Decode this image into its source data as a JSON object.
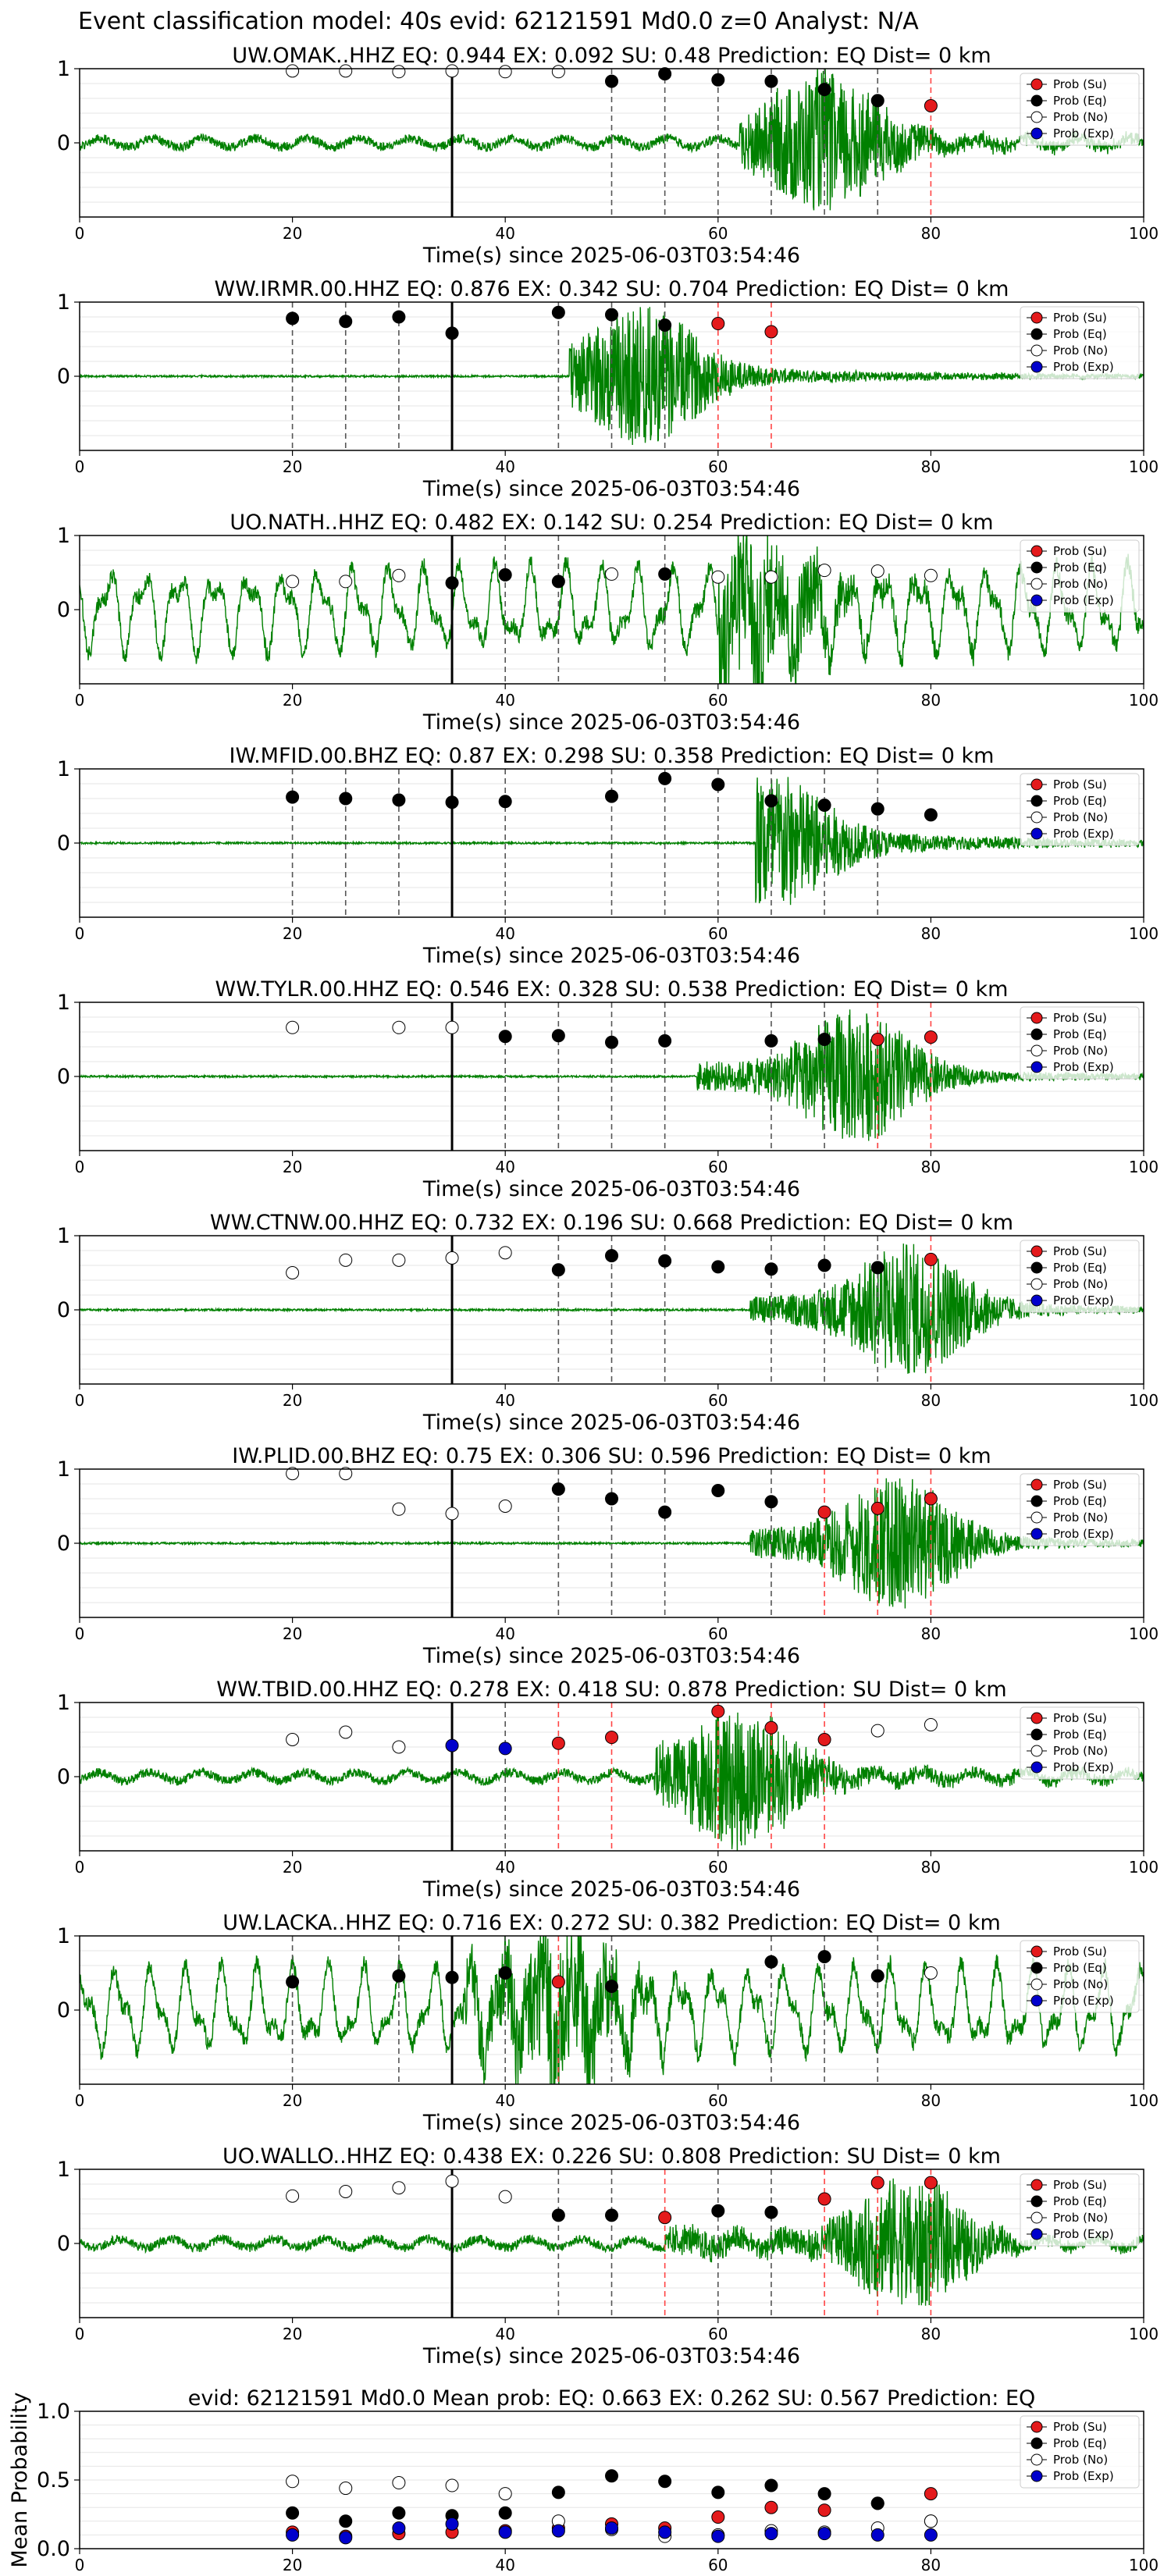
{
  "suptitle": "Event classification model: 40s evid: 62121591 Md0.0 z=0 Analyst: N/A",
  "legend_labels": [
    "Prob (Su)",
    "Prob (Eq)",
    "Prob (No)",
    "Prob (Exp)"
  ],
  "colors": {
    "waveform": "#008000",
    "su": "#e41a1c",
    "eq": "#000000",
    "no": "#ffffff",
    "exp": "#0000cc",
    "eq_line": "#555555",
    "su_line": "#ff4444",
    "origin_line": "#000000"
  },
  "chart_data": [
    {
      "type": "line",
      "title": "UW.OMAK..HHZ   EQ: 0.944   EX: 0.092   SU: 0.48   Prediction: EQ    Dist= 0 km",
      "xlabel": "Time(s) since 2025-06-03T03:54:46",
      "xlim": [
        0,
        100
      ],
      "ylim": [
        -1,
        1
      ],
      "yticks": [
        "1",
        "0"
      ],
      "xticks": [
        "0",
        "20",
        "40",
        "60",
        "80",
        "100"
      ],
      "origin_time": 35,
      "eq_lines": [
        50,
        55,
        60,
        65,
        70,
        75
      ],
      "su_lines": [
        80
      ],
      "points": [
        [
          20,
          0.97,
          "no"
        ],
        [
          25,
          0.97,
          "no"
        ],
        [
          30,
          0.96,
          "no"
        ],
        [
          35,
          0.97,
          "no"
        ],
        [
          40,
          0.96,
          "no"
        ],
        [
          45,
          0.96,
          "no"
        ],
        [
          50,
          0.83,
          "eq"
        ],
        [
          55,
          0.93,
          "eq"
        ],
        [
          60,
          0.85,
          "eq"
        ],
        [
          65,
          0.83,
          "eq"
        ],
        [
          70,
          0.72,
          "eq"
        ],
        [
          75,
          0.57,
          "eq"
        ],
        [
          80,
          0.5,
          "su"
        ]
      ],
      "waveform_style": "noisy_mid_then_burst",
      "burst_start": 62,
      "burst_peak": 70
    },
    {
      "type": "line",
      "title": "WW.IRMR.00.HHZ   EQ: 0.876   EX: 0.342   SU: 0.704   Prediction: EQ    Dist= 0 km",
      "xlabel": "Time(s) since 2025-06-03T03:54:46",
      "xlim": [
        0,
        100
      ],
      "ylim": [
        -1,
        1
      ],
      "yticks": [
        "1",
        "0"
      ],
      "xticks": [
        "0",
        "20",
        "40",
        "60",
        "80",
        "100"
      ],
      "origin_time": 35,
      "eq_lines": [
        20,
        25,
        30,
        45,
        50,
        55
      ],
      "su_lines": [
        60,
        65
      ],
      "points": [
        [
          20,
          0.78,
          "eq"
        ],
        [
          25,
          0.74,
          "eq"
        ],
        [
          30,
          0.8,
          "eq"
        ],
        [
          35,
          0.58,
          "eq"
        ],
        [
          45,
          0.86,
          "eq"
        ],
        [
          50,
          0.83,
          "eq"
        ],
        [
          55,
          0.69,
          "eq"
        ],
        [
          60,
          0.71,
          "su"
        ],
        [
          65,
          0.6,
          "su"
        ]
      ],
      "waveform_style": "quiet_then_burst",
      "burst_start": 46,
      "burst_peak": 53
    },
    {
      "type": "line",
      "title": "UO.NATH..HHZ   EQ: 0.482   EX: 0.142   SU: 0.254   Prediction: EQ    Dist= 0 km",
      "xlabel": "Time(s) since 2025-06-03T03:54:46",
      "xlim": [
        0,
        100
      ],
      "ylim": [
        -1,
        1
      ],
      "yticks": [
        "1",
        "0"
      ],
      "xticks": [
        "0",
        "20",
        "40",
        "60",
        "80",
        "100"
      ],
      "origin_time": 35,
      "eq_lines": [
        35,
        40,
        45,
        55
      ],
      "su_lines": [],
      "points": [
        [
          20,
          0.38,
          "no"
        ],
        [
          25,
          0.38,
          "no"
        ],
        [
          30,
          0.46,
          "no"
        ],
        [
          35,
          0.36,
          "eq"
        ],
        [
          40,
          0.47,
          "eq"
        ],
        [
          45,
          0.38,
          "eq"
        ],
        [
          50,
          0.48,
          "no"
        ],
        [
          55,
          0.48,
          "eq"
        ],
        [
          60,
          0.44,
          "no"
        ],
        [
          65,
          0.44,
          "no"
        ],
        [
          70,
          0.53,
          "no"
        ],
        [
          75,
          0.52,
          "no"
        ],
        [
          80,
          0.46,
          "no"
        ]
      ],
      "waveform_style": "large_oscillation",
      "burst_start": 60,
      "burst_peak": 63
    },
    {
      "type": "line",
      "title": "IW.MFID.00.BHZ   EQ: 0.87   EX: 0.298   SU: 0.358   Prediction: EQ    Dist= 0 km",
      "xlabel": "Time(s) since 2025-06-03T03:54:46",
      "xlim": [
        0,
        100
      ],
      "ylim": [
        -1,
        1
      ],
      "yticks": [
        "1",
        "0"
      ],
      "xticks": [
        "0",
        "20",
        "40",
        "60",
        "80",
        "100"
      ],
      "origin_time": 35,
      "eq_lines": [
        20,
        25,
        30,
        40,
        50,
        55,
        60,
        65,
        70,
        75
      ],
      "su_lines": [],
      "points": [
        [
          20,
          0.62,
          "eq"
        ],
        [
          25,
          0.6,
          "eq"
        ],
        [
          30,
          0.58,
          "eq"
        ],
        [
          35,
          0.55,
          "eq"
        ],
        [
          40,
          0.56,
          "eq"
        ],
        [
          50,
          0.63,
          "eq"
        ],
        [
          55,
          0.87,
          "eq"
        ],
        [
          60,
          0.79,
          "eq"
        ],
        [
          65,
          0.57,
          "eq"
        ],
        [
          70,
          0.51,
          "eq"
        ],
        [
          75,
          0.46,
          "eq"
        ],
        [
          80,
          0.38,
          "eq"
        ]
      ],
      "waveform_style": "quiet_then_burst",
      "burst_start": 63.5,
      "burst_peak": 65
    },
    {
      "type": "line",
      "title": "WW.TYLR.00.HHZ   EQ: 0.546   EX: 0.328   SU: 0.538   Prediction: EQ    Dist= 0 km",
      "xlabel": "Time(s) since 2025-06-03T03:54:46",
      "xlim": [
        0,
        100
      ],
      "ylim": [
        -1,
        1
      ],
      "yticks": [
        "1",
        "0"
      ],
      "xticks": [
        "0",
        "20",
        "40",
        "60",
        "80",
        "100"
      ],
      "origin_time": 35,
      "eq_lines": [
        40,
        45,
        50,
        55,
        65,
        70,
        75
      ],
      "su_lines": [
        75,
        80
      ],
      "points": [
        [
          20,
          0.66,
          "no"
        ],
        [
          30,
          0.66,
          "no"
        ],
        [
          35,
          0.66,
          "no"
        ],
        [
          40,
          0.54,
          "eq"
        ],
        [
          45,
          0.55,
          "eq"
        ],
        [
          50,
          0.46,
          "eq"
        ],
        [
          55,
          0.48,
          "eq"
        ],
        [
          65,
          0.48,
          "eq"
        ],
        [
          70,
          0.5,
          "eq"
        ],
        [
          75,
          0.5,
          "su"
        ],
        [
          80,
          0.53,
          "su"
        ]
      ],
      "waveform_style": "quiet_then_burst",
      "burst_start": 58,
      "burst_peak": 73
    },
    {
      "type": "line",
      "title": "WW.CTNW.00.HHZ   EQ: 0.732   EX: 0.196   SU: 0.668   Prediction: EQ    Dist= 0 km",
      "xlabel": "Time(s) since 2025-06-03T03:54:46",
      "xlim": [
        0,
        100
      ],
      "ylim": [
        -1,
        1
      ],
      "yticks": [
        "1",
        "0"
      ],
      "xticks": [
        "0",
        "20",
        "40",
        "60",
        "80",
        "100"
      ],
      "origin_time": 35,
      "eq_lines": [
        45,
        50,
        55,
        65,
        70,
        75
      ],
      "su_lines": [
        80
      ],
      "points": [
        [
          20,
          0.5,
          "no"
        ],
        [
          25,
          0.67,
          "no"
        ],
        [
          30,
          0.67,
          "no"
        ],
        [
          35,
          0.7,
          "no"
        ],
        [
          40,
          0.77,
          "no"
        ],
        [
          45,
          0.54,
          "eq"
        ],
        [
          50,
          0.73,
          "eq"
        ],
        [
          55,
          0.66,
          "eq"
        ],
        [
          60,
          0.58,
          "eq"
        ],
        [
          65,
          0.55,
          "eq"
        ],
        [
          70,
          0.6,
          "eq"
        ],
        [
          75,
          0.57,
          "eq"
        ],
        [
          80,
          0.68,
          "su"
        ]
      ],
      "waveform_style": "quiet_then_burst",
      "burst_start": 63,
      "burst_peak": 78
    },
    {
      "type": "line",
      "title": "IW.PLID.00.BHZ   EQ: 0.75  EX: 0.306  SU: 0.596   Prediction: EQ    Dist= 0 km",
      "xlabel": "Time(s) since 2025-06-03T03:54:46",
      "xlim": [
        0,
        100
      ],
      "ylim": [
        -1,
        1
      ],
      "yticks": [
        "1",
        "0"
      ],
      "xticks": [
        "0",
        "20",
        "40",
        "60",
        "80",
        "100"
      ],
      "origin_time": 35,
      "eq_lines": [
        45,
        50,
        55,
        65
      ],
      "su_lines": [
        70,
        75,
        80
      ],
      "points": [
        [
          20,
          0.94,
          "no"
        ],
        [
          25,
          0.94,
          "no"
        ],
        [
          30,
          0.46,
          "no"
        ],
        [
          35,
          0.4,
          "no"
        ],
        [
          40,
          0.5,
          "no"
        ],
        [
          45,
          0.73,
          "eq"
        ],
        [
          50,
          0.6,
          "eq"
        ],
        [
          55,
          0.42,
          "eq"
        ],
        [
          60,
          0.71,
          "eq"
        ],
        [
          65,
          0.56,
          "eq"
        ],
        [
          70,
          0.42,
          "su"
        ],
        [
          75,
          0.47,
          "su"
        ],
        [
          80,
          0.6,
          "su"
        ]
      ],
      "waveform_style": "quiet_then_burst",
      "burst_start": 63,
      "burst_peak": 77
    },
    {
      "type": "line",
      "title": "WW.TBID.00.HHZ   EQ: 0.278   EX: 0.418   SU: 0.878   Prediction: SU    Dist= 0 km",
      "xlabel": "Time(s) since 2025-06-03T03:54:46",
      "xlim": [
        0,
        100
      ],
      "ylim": [
        -1,
        1
      ],
      "yticks": [
        "1",
        "0"
      ],
      "xticks": [
        "0",
        "20",
        "40",
        "60",
        "80",
        "100"
      ],
      "origin_time": 35,
      "eq_lines": [
        40
      ],
      "su_lines": [
        45,
        50,
        60,
        65,
        70
      ],
      "points": [
        [
          20,
          0.5,
          "no"
        ],
        [
          25,
          0.6,
          "no"
        ],
        [
          30,
          0.4,
          "no"
        ],
        [
          35,
          0.42,
          "exp"
        ],
        [
          40,
          0.38,
          "exp"
        ],
        [
          45,
          0.45,
          "su"
        ],
        [
          50,
          0.53,
          "su"
        ],
        [
          60,
          0.88,
          "su"
        ],
        [
          65,
          0.66,
          "su"
        ],
        [
          70,
          0.5,
          "su"
        ],
        [
          75,
          0.62,
          "no"
        ],
        [
          80,
          0.7,
          "no"
        ]
      ],
      "waveform_style": "noisy_mid_then_burst",
      "burst_start": 54,
      "burst_peak": 62
    },
    {
      "type": "line",
      "title": "UW.LACKA..HHZ   EQ: 0.716   EX: 0.272   SU: 0.382   Prediction: EQ    Dist= 0 km",
      "xlabel": "Time(s) since 2025-06-03T03:54:46",
      "xlim": [
        0,
        100
      ],
      "ylim": [
        -1,
        1
      ],
      "yticks": [
        "1",
        "0"
      ],
      "xticks": [
        "0",
        "20",
        "40",
        "60",
        "80",
        "100"
      ],
      "origin_time": 35,
      "eq_lines": [
        20,
        30,
        40,
        50,
        65,
        70,
        75
      ],
      "su_lines": [
        45
      ],
      "points": [
        [
          20,
          0.38,
          "eq"
        ],
        [
          30,
          0.46,
          "eq"
        ],
        [
          35,
          0.44,
          "eq"
        ],
        [
          40,
          0.5,
          "eq"
        ],
        [
          45,
          0.38,
          "su"
        ],
        [
          50,
          0.32,
          "eq"
        ],
        [
          65,
          0.65,
          "eq"
        ],
        [
          70,
          0.72,
          "eq"
        ],
        [
          75,
          0.46,
          "eq"
        ],
        [
          80,
          0.5,
          "no"
        ]
      ],
      "waveform_style": "large_oscillation",
      "burst_start": 36,
      "burst_peak": 45
    },
    {
      "type": "line",
      "title": "UO.WALLO..HHZ   EQ: 0.438   EX: 0.226   SU: 0.808   Prediction: SU    Dist= 0 km",
      "xlabel": "Time(s) since 2025-06-03T03:54:46",
      "xlim": [
        0,
        100
      ],
      "ylim": [
        -1,
        1
      ],
      "yticks": [
        "1",
        "0"
      ],
      "xticks": [
        "0",
        "20",
        "40",
        "60",
        "80",
        "100"
      ],
      "origin_time": 35,
      "eq_lines": [
        45,
        50,
        60,
        65
      ],
      "su_lines": [
        55,
        70,
        75,
        80
      ],
      "points": [
        [
          20,
          0.64,
          "no"
        ],
        [
          25,
          0.7,
          "no"
        ],
        [
          30,
          0.75,
          "no"
        ],
        [
          35,
          0.84,
          "no"
        ],
        [
          40,
          0.63,
          "no"
        ],
        [
          45,
          0.38,
          "eq"
        ],
        [
          50,
          0.38,
          "eq"
        ],
        [
          55,
          0.35,
          "su"
        ],
        [
          60,
          0.44,
          "eq"
        ],
        [
          65,
          0.42,
          "eq"
        ],
        [
          70,
          0.6,
          "su"
        ],
        [
          75,
          0.82,
          "su"
        ],
        [
          80,
          0.82,
          "su"
        ]
      ],
      "waveform_style": "noisy_mid_then_burst",
      "burst_start": 55,
      "burst_peak": 78
    },
    {
      "type": "scatter",
      "title": "evid: 62121591  Md0.0   Mean prob:   EQ: 0.663  EX: 0.262  SU: 0.567   Prediction: EQ",
      "ylabel": "Mean Probability",
      "xlim": [
        0,
        100
      ],
      "ylim": [
        0,
        1
      ],
      "yticks": [
        "0.0",
        "0.5",
        "1.0"
      ],
      "xticks": [
        "0",
        "20",
        "40",
        "60",
        "80",
        "100"
      ],
      "series": [
        {
          "name": "Prob (Su)",
          "x": [
            20,
            25,
            30,
            35,
            40,
            45,
            50,
            55,
            60,
            65,
            70,
            75,
            80
          ],
          "y": [
            0.12,
            0.09,
            0.11,
            0.12,
            0.13,
            0.15,
            0.18,
            0.15,
            0.23,
            0.3,
            0.28,
            0.33,
            0.4
          ]
        },
        {
          "name": "Prob (Eq)",
          "x": [
            20,
            25,
            30,
            35,
            40,
            45,
            50,
            55,
            60,
            65,
            70,
            75,
            80
          ],
          "y": [
            0.26,
            0.2,
            0.26,
            0.24,
            0.26,
            0.41,
            0.53,
            0.49,
            0.41,
            0.46,
            0.4,
            0.33,
            0.2
          ]
        },
        {
          "name": "Prob (No)",
          "x": [
            20,
            25,
            30,
            35,
            40,
            45,
            50,
            55,
            60,
            65,
            70,
            75,
            80
          ],
          "y": [
            0.49,
            0.44,
            0.48,
            0.46,
            0.4,
            0.2,
            0.14,
            0.09,
            0.1,
            0.13,
            0.12,
            0.15,
            0.2
          ]
        },
        {
          "name": "Prob (Exp)",
          "x": [
            20,
            25,
            30,
            35,
            40,
            45,
            50,
            55,
            60,
            65,
            70,
            75,
            80
          ],
          "y": [
            0.1,
            0.08,
            0.15,
            0.18,
            0.12,
            0.13,
            0.15,
            0.12,
            0.09,
            0.11,
            0.11,
            0.1,
            0.1
          ]
        }
      ]
    }
  ]
}
